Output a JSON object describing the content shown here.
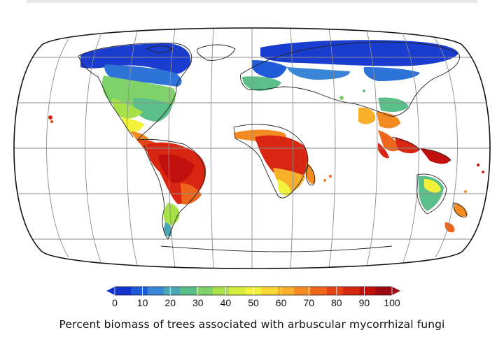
{
  "map": {
    "projection": "equal-earth",
    "graticule": true,
    "variable": "percent biomass of trees associated with arbuscular mycorrhizal fungi"
  },
  "legend": {
    "ticks": [
      "0",
      "10",
      "20",
      "30",
      "40",
      "50",
      "60",
      "70",
      "80",
      "90",
      "100"
    ],
    "min": 0,
    "max": 100,
    "extend": "both",
    "colors": [
      "#1133cc",
      "#1f5bd8",
      "#3a86d6",
      "#4aa6b4",
      "#5cbf8a",
      "#7fd26a",
      "#a8e04a",
      "#d4ec3c",
      "#f2f23a",
      "#fbd733",
      "#f8b02a",
      "#f38a22",
      "#ee661c",
      "#e44418",
      "#d82612",
      "#c2100e",
      "#9e0a14"
    ]
  },
  "caption": "Percent biomass of trees associated with arbuscular mycorrhizal fungi"
}
